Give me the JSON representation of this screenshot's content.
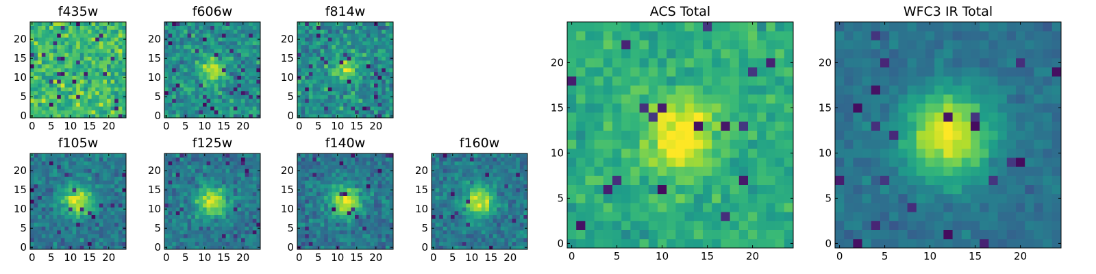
{
  "chart_data": [
    {
      "type": "heatmap",
      "title": "f435w",
      "xticks": [
        0,
        5,
        10,
        15,
        20
      ],
      "yticks": [
        0,
        5,
        10,
        15,
        20
      ],
      "xlim": [
        -0.5,
        24.5
      ],
      "ylim": [
        -0.5,
        24.5
      ],
      "grid": 25,
      "pattern": "noise",
      "colormap": "viridis"
    },
    {
      "type": "heatmap",
      "title": "f606w",
      "xticks": [
        0,
        5,
        10,
        15,
        20
      ],
      "yticks": [
        0,
        5,
        10,
        15,
        20
      ],
      "xlim": [
        -0.5,
        24.5
      ],
      "ylim": [
        -0.5,
        24.5
      ],
      "grid": 25,
      "pattern": "faint-source",
      "source_center": [
        12,
        12
      ],
      "colormap": "viridis"
    },
    {
      "type": "heatmap",
      "title": "f814w",
      "xticks": [
        0,
        5,
        10,
        15,
        20
      ],
      "yticks": [
        0,
        5,
        10,
        15,
        20
      ],
      "xlim": [
        -0.5,
        24.5
      ],
      "ylim": [
        -0.5,
        24.5
      ],
      "grid": 25,
      "pattern": "faint-source",
      "source_center": [
        12,
        12
      ],
      "colormap": "viridis"
    },
    {
      "type": "heatmap",
      "title": "f105w",
      "xticks": [
        0,
        5,
        10,
        15,
        20
      ],
      "yticks": [
        0,
        5,
        10,
        15,
        20
      ],
      "xlim": [
        -0.5,
        24.5
      ],
      "ylim": [
        -0.5,
        24.5
      ],
      "grid": 25,
      "pattern": "source",
      "source_center": [
        12,
        12
      ],
      "colormap": "viridis"
    },
    {
      "type": "heatmap",
      "title": "f125w",
      "xticks": [
        0,
        5,
        10,
        15,
        20
      ],
      "yticks": [
        0,
        5,
        10,
        15,
        20
      ],
      "xlim": [
        -0.5,
        24.5
      ],
      "ylim": [
        -0.5,
        24.5
      ],
      "grid": 25,
      "pattern": "source",
      "source_center": [
        12,
        12
      ],
      "colormap": "viridis"
    },
    {
      "type": "heatmap",
      "title": "f140w",
      "xticks": [
        0,
        5,
        10,
        15,
        20
      ],
      "yticks": [
        0,
        5,
        10,
        15,
        20
      ],
      "xlim": [
        -0.5,
        24.5
      ],
      "ylim": [
        -0.5,
        24.5
      ],
      "grid": 25,
      "pattern": "source",
      "source_center": [
        12,
        12
      ],
      "colormap": "viridis"
    },
    {
      "type": "heatmap",
      "title": "f160w",
      "xticks": [
        0,
        5,
        10,
        15,
        20
      ],
      "yticks": [
        0,
        5,
        10,
        15,
        20
      ],
      "xlim": [
        -0.5,
        24.5
      ],
      "ylim": [
        -0.5,
        24.5
      ],
      "grid": 25,
      "pattern": "source",
      "source_center": [
        12,
        12
      ],
      "colormap": "viridis"
    },
    {
      "type": "heatmap",
      "title": "ACS Total",
      "xticks": [
        0,
        5,
        10,
        15,
        20
      ],
      "yticks": [
        0,
        5,
        10,
        15,
        20
      ],
      "xlim": [
        -0.5,
        24.5
      ],
      "ylim": [
        -0.5,
        24.5
      ],
      "grid": 25,
      "pattern": "bright-source",
      "source_center": [
        12,
        12
      ],
      "colormap": "viridis"
    },
    {
      "type": "heatmap",
      "title": "WFC3 IR Total",
      "xticks": [
        0,
        5,
        10,
        15,
        20
      ],
      "yticks": [
        0,
        5,
        10,
        15,
        20
      ],
      "xlim": [
        -0.5,
        24.5
      ],
      "ylim": [
        -0.5,
        24.5
      ],
      "grid": 25,
      "pattern": "smooth-source",
      "source_center": [
        12,
        12
      ],
      "colormap": "viridis"
    }
  ]
}
